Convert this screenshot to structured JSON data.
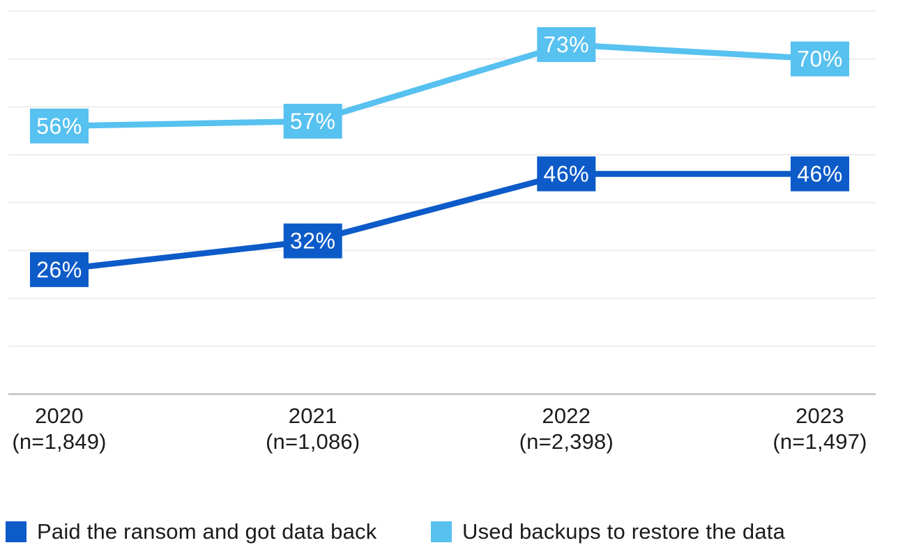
{
  "colors": {
    "dark_blue": "#0c5bc8",
    "light_blue": "#57c1f0",
    "grid": "#ededed",
    "axis": "#c9c9c9",
    "text": "#1b1b1b",
    "data_label_text": "#ffffff",
    "background": "#ffffff"
  },
  "chart_data": {
    "type": "line",
    "title": "",
    "xlabel": "",
    "ylabel": "",
    "grid": "horizontal gridlines every 10%, x-axis baseline only, no y-axis tick labels",
    "ylim": [
      0,
      80
    ],
    "gridline_step": 10,
    "legend_position": "bottom-left",
    "categories": [
      "2020",
      "2021",
      "2022",
      "2023"
    ],
    "category_sublabels": [
      "(n=1,849)",
      "(n=1,086)",
      "(n=2,398)",
      "(n=1,497)"
    ],
    "series": [
      {
        "name": "Paid the ransom and got data back",
        "color_key": "dark_blue",
        "values": [
          26,
          32,
          46,
          46
        ],
        "labels": [
          "26%",
          "32%",
          "46%",
          "46%"
        ]
      },
      {
        "name": "Used backups to restore the data",
        "color_key": "light_blue",
        "values": [
          56,
          57,
          73,
          70
        ],
        "labels": [
          "56%",
          "57%",
          "73%",
          "70%"
        ]
      }
    ]
  }
}
